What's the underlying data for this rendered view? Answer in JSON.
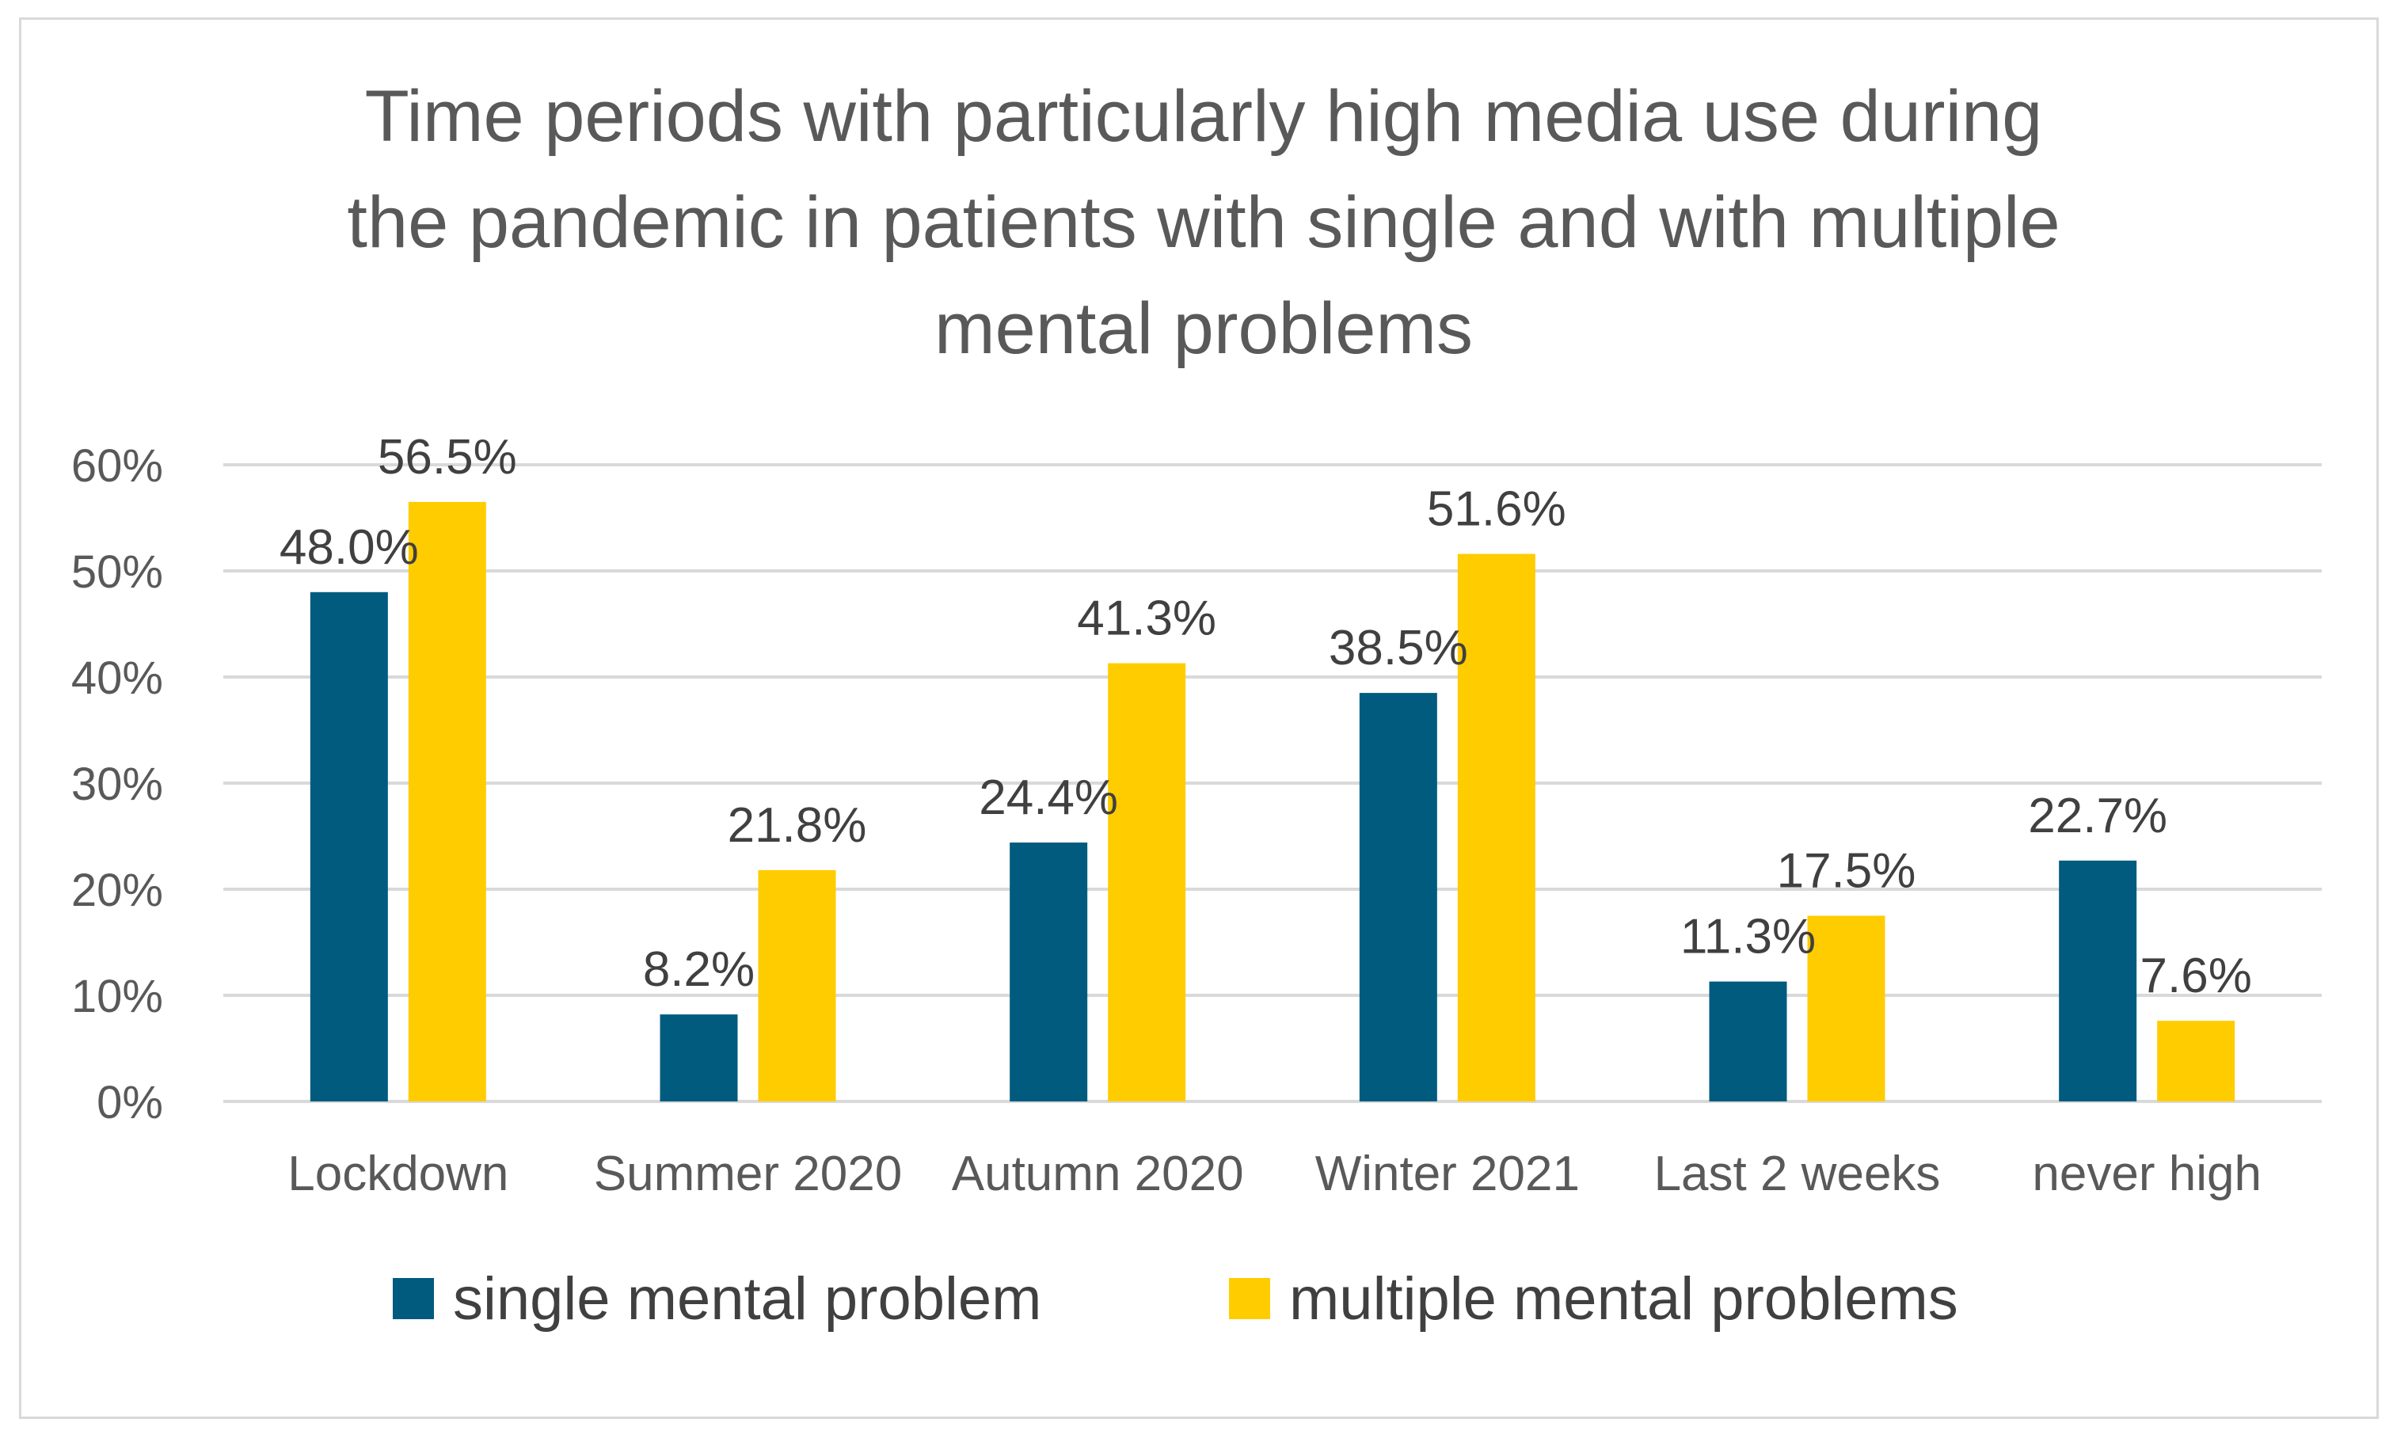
{
  "chart_data": {
    "type": "bar",
    "title_lines": [
      "Time periods with particularly high media use during",
      "the pandemic in patients with single and with multiple",
      "mental problems"
    ],
    "categories": [
      "Lockdown",
      "Summer 2020",
      "Autumn 2020",
      "Winter 2021",
      "Last 2 weeks",
      "never high"
    ],
    "series": [
      {
        "name": "single mental problem",
        "color": "#005B7F",
        "values": [
          48.0,
          8.2,
          24.4,
          38.5,
          11.3,
          22.7
        ],
        "labels": [
          "48.0%",
          "8.2%",
          "24.4%",
          "38.5%",
          "11.3%",
          "22.7%"
        ]
      },
      {
        "name": "multiple mental problems",
        "color": "#FFCC00",
        "values": [
          56.5,
          21.8,
          41.3,
          51.6,
          17.5,
          7.6
        ],
        "labels": [
          "56.5%",
          "21.8%",
          "41.3%",
          "51.6%",
          "17.5%",
          "7.6%"
        ]
      }
    ],
    "ylim": [
      0,
      60
    ],
    "yticks": [
      {
        "value": 0,
        "label": "0%"
      },
      {
        "value": 10,
        "label": "10%"
      },
      {
        "value": 20,
        "label": "20%"
      },
      {
        "value": 30,
        "label": "30%"
      },
      {
        "value": 40,
        "label": "40%"
      },
      {
        "value": 50,
        "label": "50%"
      },
      {
        "value": 60,
        "label": "60%"
      }
    ],
    "xlabel": "",
    "ylabel": "",
    "grid": true,
    "legend_position": "bottom"
  }
}
